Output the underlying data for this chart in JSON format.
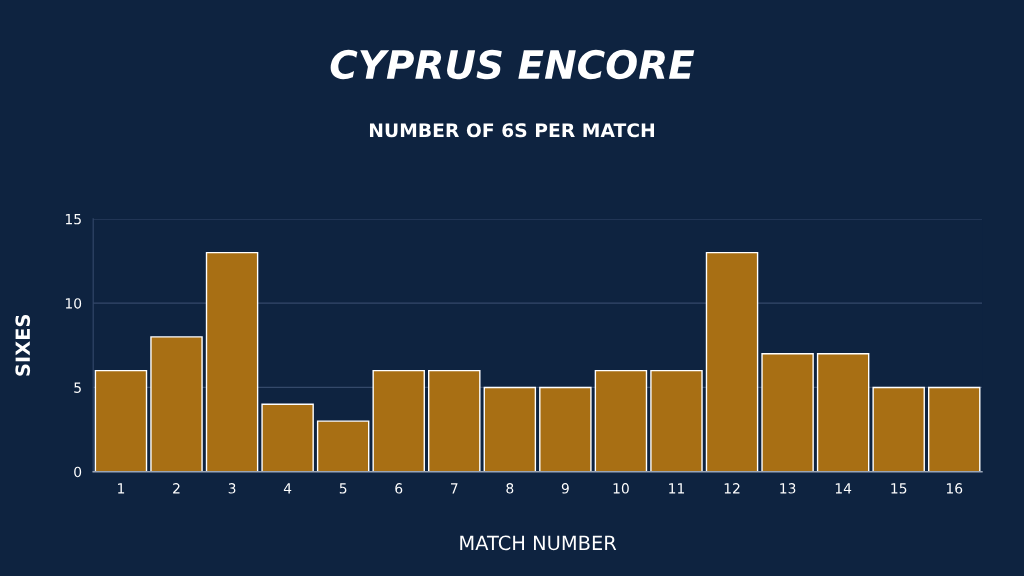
{
  "chart_data": {
    "type": "bar",
    "title": "CYPRUS ENCORE",
    "subtitle": "NUMBER OF 6S PER MATCH",
    "xlabel": "MATCH NUMBER",
    "ylabel": "SIXES",
    "categories": [
      "1",
      "2",
      "3",
      "4",
      "5",
      "6",
      "7",
      "8",
      "9",
      "10",
      "11",
      "12",
      "13",
      "14",
      "15",
      "16"
    ],
    "values": [
      6,
      8,
      13,
      4,
      3,
      6,
      6,
      5,
      5,
      6,
      6,
      13,
      7,
      7,
      5,
      5
    ],
    "color": "#a86f14",
    "ylim": [
      0,
      15
    ],
    "yticks": [
      0,
      5,
      10,
      15
    ],
    "grid": "y"
  }
}
